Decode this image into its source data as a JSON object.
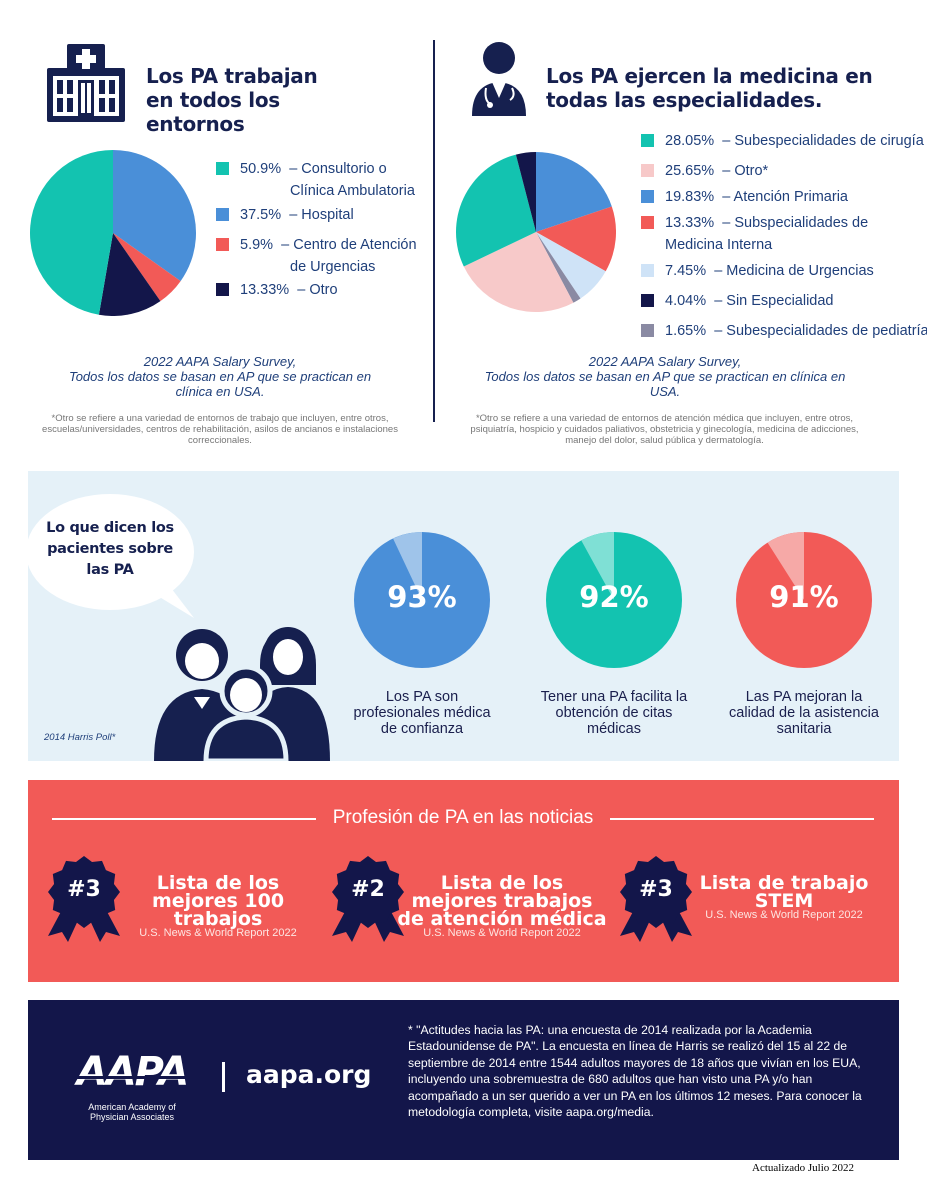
{
  "settings": {
    "title": "Los PA trabajan en todos los entornos",
    "legend": [
      {
        "value": "50.9%",
        "label": "– Consultorio o",
        "label2": "Clínica Ambulatoria",
        "color": "#13c3b0"
      },
      {
        "value": "37.5%",
        "label": "– Hospital",
        "color": "#4a8fd8"
      },
      {
        "value": "5.9%",
        "label": "– Centro de Atención",
        "label2": "de Urgencias",
        "color": "#f25a57"
      },
      {
        "value": "13.33%",
        "label": "– Otro",
        "color": "#13164a"
      }
    ],
    "source_line1": "2022 AAPA Salary Survey,",
    "source_line2": "Todos los datos se basan en AP que se practican en",
    "source_line3": "clínica en USA.",
    "note": "*Otro se refiere a una variedad de entornos de trabajo que incluyen, entre otros, escuelas/universidades, centros de rehabilitación, asilos de ancianos e instalaciones correccionales."
  },
  "specialties": {
    "title": "Los PA ejercen la medicina en todas las especialidades.",
    "legend": [
      {
        "value": "28.05%",
        "label": "– Subespecialidades de cirugía",
        "color": "#13c3b0"
      },
      {
        "value": "25.65%",
        "label": "– Otro*",
        "color": "#f7c9c9"
      },
      {
        "value": "19.83%",
        "label": "– Atención Primaria",
        "color": "#4a8fd8"
      },
      {
        "value": "13.33%",
        "label": "– Subspecialidades de",
        "label2": "Medicina Interna",
        "color": "#f25a57"
      },
      {
        "value": "7.45%",
        "label": "– Medicina de Urgencias",
        "color": "#cfe3f7"
      },
      {
        "value": "4.04%",
        "label": "– Sin Especialidad",
        "color": "#13164a"
      },
      {
        "value": "1.65%",
        "label": "– Subespecialidades de pediatría",
        "color": "#8a8aa3"
      }
    ],
    "source_line1": "2022 AAPA Salary Survey,",
    "source_line2": "Todos los datos se basan en AP que se practican en clínica en",
    "source_line3": "USA.",
    "note": "*Otro se refiere a una variedad de entornos de atención médica que incluyen, entre otros, psiquiatría, hospicio y cuidados paliativos, obstetricia y ginecología, medicina de adicciones, manejo del dolor, salud pública y dermatología."
  },
  "patients": {
    "bubble_text": "Lo que dicen los pacientes sobre las PA",
    "source": "2014 Harris Poll*",
    "stats": [
      {
        "percent": "93%",
        "value": 93,
        "caption": "Los PA son profesionales médica de confianza",
        "color": "#4a8fd8",
        "light": "#9fc4ea"
      },
      {
        "percent": "92%",
        "value": 92,
        "caption": "Tener una PA facilita la obtención de citas médicas",
        "color": "#13c3b0",
        "light": "#7fe0d5"
      },
      {
        "percent": "91%",
        "value": 91,
        "caption": "Las PA mejoran la calidad de la asistencia sanitaria",
        "color": "#f25a57",
        "light": "#f6a9a7"
      }
    ]
  },
  "news": {
    "heading": "Profesión de PA en las noticias",
    "items": [
      {
        "rank": "#3",
        "title": "Lista de los mejores 100 trabajos",
        "source": "U.S. News & World Report 2022"
      },
      {
        "rank": "#2",
        "title": "Lista de los mejores trabajos de atención médica",
        "source": "U.S. News & World Report 2022"
      },
      {
        "rank": "#3",
        "title": "Lista de trabajo STEM",
        "source": "U.S. News & World Report 2022"
      }
    ]
  },
  "footer": {
    "logo_text": "AAPA",
    "org_line1": "American Academy of",
    "org_line2": "Physician Associates",
    "url": "aapa.org",
    "disclaimer": "* \"Actitudes hacia las PA: una encuesta de 2014 realizada por la Academia Estadounidense de PA\". La encuesta en línea de Harris se realizó del 15 al 22 de septiembre de 2014 entre 1544 adultos mayores de 18 años que vivían en los EUA, incluyendo una sobremuestra de 680 adultos que han visto una PA y/o han acompañado a un ser querido a ver un PA en los últimos 12 meses. Para conocer la metodología completa, visite aapa.org/media.",
    "updated": "Actualizado Julio 2022"
  }
}
